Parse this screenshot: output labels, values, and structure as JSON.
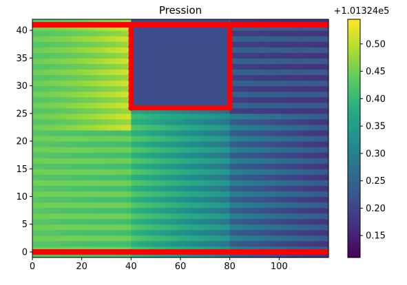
{
  "chart_data": {
    "type": "heatmap",
    "title": "Pression",
    "colorbar_offset_label": "+1.01324e5",
    "xlim": [
      0,
      120
    ],
    "ylim": [
      -1,
      42
    ],
    "x_ticks": [
      0,
      20,
      40,
      60,
      80,
      100
    ],
    "y_ticks": [
      0,
      5,
      10,
      15,
      20,
      25,
      30,
      35,
      40
    ],
    "colormap": "viridis",
    "color_range": [
      0.11,
      0.545
    ],
    "colorbar_ticks": [
      "0.15",
      "0.20",
      "0.25",
      "0.30",
      "0.35",
      "0.40",
      "0.45",
      "0.50"
    ],
    "colorbar_tick_values": [
      0.15,
      0.2,
      0.25,
      0.3,
      0.35,
      0.4,
      0.45,
      0.5
    ],
    "field": {
      "inlet_value": 0.44,
      "before_obstacle_value": 0.5,
      "after_obstacle_top_value": 0.22,
      "outlet_value": 0.205,
      "stripe_amplitude": 0.03
    },
    "obstacle": {
      "x": [
        40,
        80
      ],
      "y": [
        26,
        41
      ],
      "value": 0.23,
      "color": "#3b4d8b"
    },
    "walls": {
      "color": "#ff0000",
      "top_y": 41,
      "bottom_y": 0,
      "obstacle_outline": [
        [
          40,
          41
        ],
        [
          40,
          26
        ],
        [
          80,
          26
        ],
        [
          80,
          41
        ]
      ]
    }
  }
}
